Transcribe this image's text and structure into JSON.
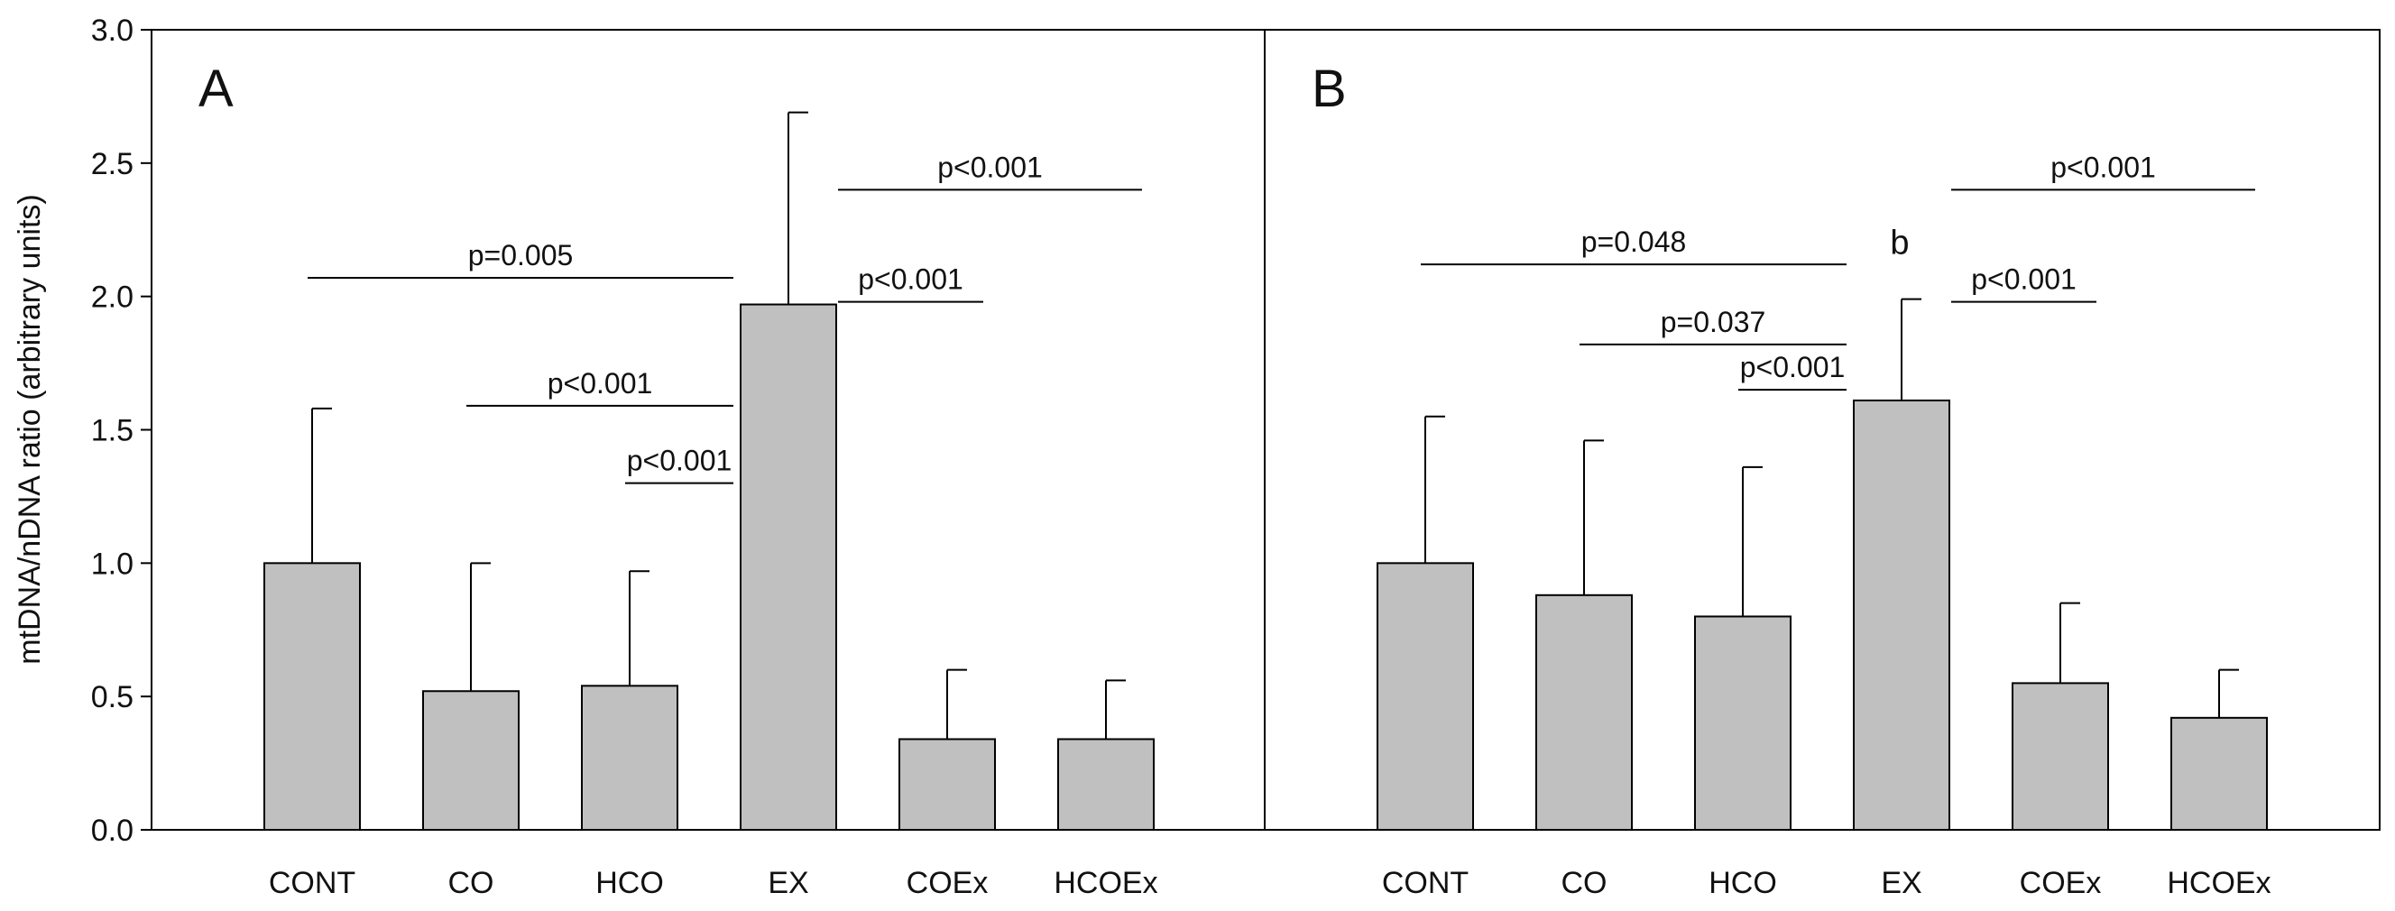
{
  "chart_data": {
    "type": "bar",
    "ylabel": "mtDNA/nDNA ratio (arbitrary units)",
    "ylim": [
      0,
      3.0
    ],
    "yticks": [
      "0.0",
      "0.5",
      "1.0",
      "1.5",
      "2.0",
      "2.5",
      "3.0"
    ],
    "categories": [
      "CONT",
      "CO",
      "HCO",
      "EX",
      "COEx",
      "HCOEx"
    ],
    "bar_color": "#c0c0c0",
    "panels": [
      {
        "label": "A",
        "values": [
          1.0,
          0.52,
          0.54,
          1.97,
          0.34,
          0.34
        ],
        "errors": [
          0.58,
          0.48,
          0.43,
          0.72,
          0.26,
          0.22
        ],
        "comparisons": [
          {
            "from": 0,
            "to": 3,
            "y": 2.07,
            "text": "p=0.005"
          },
          {
            "from": 1,
            "to": 3,
            "y": 1.59,
            "text": "p<0.001"
          },
          {
            "from": 2,
            "to": 3,
            "y": 1.3,
            "text": "p<0.001"
          },
          {
            "from": 3,
            "to": 4,
            "y": 1.98,
            "text": "p<0.001"
          },
          {
            "from": 3,
            "to": 5,
            "y": 2.4,
            "text": "p<0.001"
          }
        ],
        "annotations": []
      },
      {
        "label": "B",
        "values": [
          1.0,
          0.88,
          0.8,
          1.61,
          0.55,
          0.42
        ],
        "errors": [
          0.55,
          0.58,
          0.56,
          0.38,
          0.3,
          0.18
        ],
        "comparisons": [
          {
            "from": 0,
            "to": 3,
            "y": 2.12,
            "text": "p=0.048"
          },
          {
            "from": 1,
            "to": 3,
            "y": 1.82,
            "text": "p=0.037"
          },
          {
            "from": 2,
            "to": 3,
            "y": 1.65,
            "text": "p<0.001"
          },
          {
            "from": 3,
            "to": 4,
            "y": 1.98,
            "text": "p<0.001"
          },
          {
            "from": 3,
            "to": 5,
            "y": 2.4,
            "text": "p<0.001"
          }
        ],
        "annotations": [
          {
            "bar": 3,
            "y": 2.16,
            "text": "b"
          }
        ]
      }
    ]
  }
}
